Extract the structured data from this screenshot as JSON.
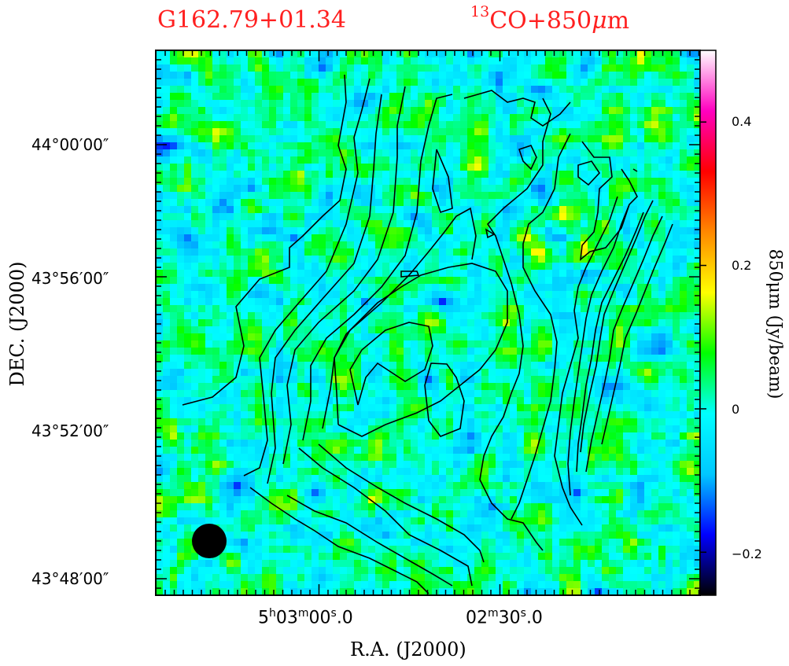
{
  "titles": {
    "source": "G162.79+01.34",
    "tracer_prefix": "13",
    "tracer": "CO+850",
    "tracer_mu": "μ",
    "tracer_unit": "m"
  },
  "chart_data": {
    "type": "heatmap",
    "title": "G162.79+01.34",
    "subtitle": "13CO+850μm",
    "xlabel": "R.A. (J2000)",
    "ylabel": "DEC. (J2000)",
    "colorbar_label": "850μm (Jy/beam)",
    "x_ticks": [
      {
        "h": "5",
        "m": "03",
        "s": "00",
        "frac": ".0",
        "label": "5h03m00s.0"
      },
      {
        "h": "",
        "m": "02",
        "s": "30",
        "frac": ".0",
        "label": "02m30s.0"
      }
    ],
    "y_ticks": [
      "44°00′00″",
      "43°56′00″",
      "43°52′00″",
      "43°48′00″"
    ],
    "colorbar": {
      "range": [
        -0.26,
        0.5
      ],
      "ticks": [
        "0.4",
        "0.2",
        "0",
        "−0.2"
      ],
      "tick_values": [
        0.4,
        0.2,
        0,
        -0.2
      ],
      "colormap": [
        "#000000",
        "#0000ff",
        "#00c8ff",
        "#00ffff",
        "#00ff00",
        "#ffff00",
        "#ff8800",
        "#ff0000",
        "#ff00c0",
        "#ffffff"
      ]
    },
    "overlay": "13CO integrated intensity contours",
    "beam": "filled black circle, lower-left"
  }
}
